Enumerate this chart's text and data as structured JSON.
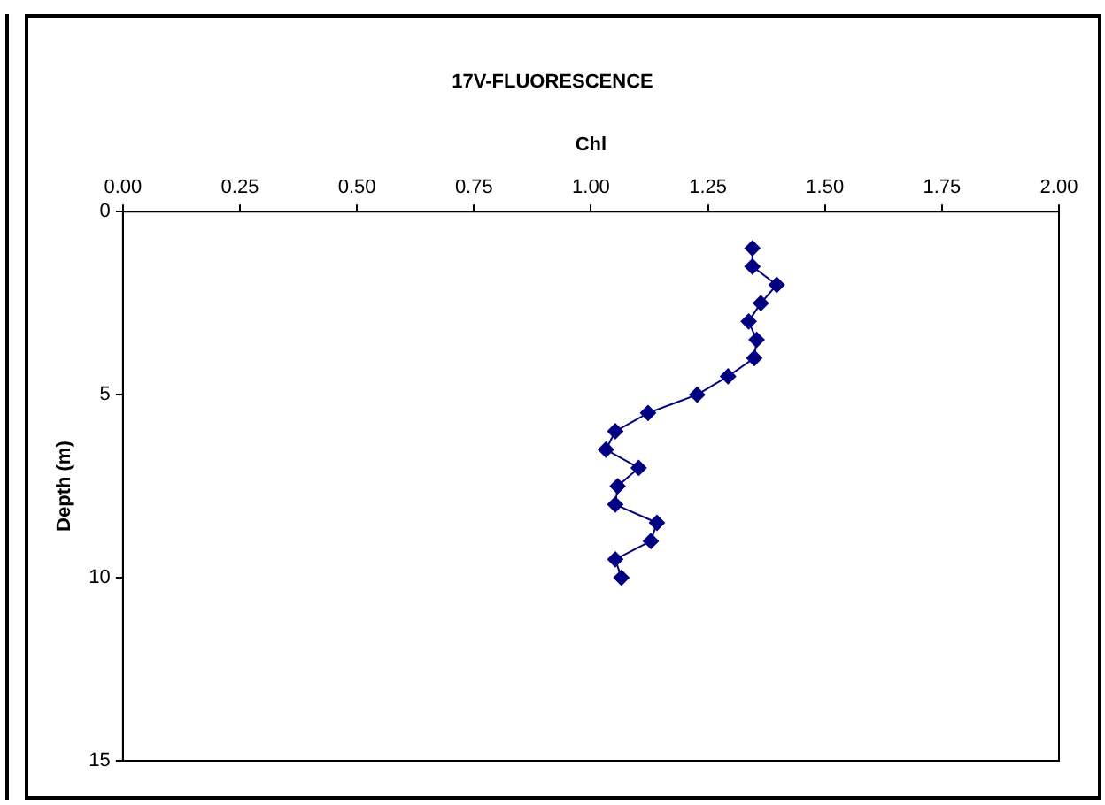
{
  "chart_data": {
    "type": "line",
    "title": "17V-FLUORESCENCE",
    "xlabel": "Chl",
    "ylabel": "Depth (m)",
    "xlim": [
      0,
      2
    ],
    "xticks": [
      {
        "value": 0,
        "label": "0.00"
      },
      {
        "value": 0.25,
        "label": "0.25"
      },
      {
        "value": 0.5,
        "label": "0.50"
      },
      {
        "value": 0.75,
        "label": "0.75"
      },
      {
        "value": 1,
        "label": "1.00"
      },
      {
        "value": 1.25,
        "label": "1.25"
      },
      {
        "value": 1.5,
        "label": "1.50"
      },
      {
        "value": 1.75,
        "label": "1.75"
      },
      {
        "value": 2,
        "label": "2.00"
      }
    ],
    "ylim": [
      15,
      0
    ],
    "yticks": [
      0,
      5,
      10,
      15
    ],
    "grid": false,
    "legend": false,
    "marker": "diamond",
    "line_style": "solid",
    "series": [
      {
        "color": "#000080",
        "x": [
          1.345,
          1.345,
          1.397,
          1.363,
          1.337,
          1.354,
          1.349,
          1.293,
          1.227,
          1.122,
          1.052,
          1.032,
          1.102,
          1.057,
          1.052,
          1.141,
          1.128,
          1.052,
          1.065
        ],
        "values": [
          1,
          1.5,
          2,
          2.5,
          3,
          3.5,
          4,
          4.5,
          5,
          5.5,
          6,
          6.5,
          7,
          7.5,
          8,
          8.5,
          9,
          9.5,
          10
        ]
      }
    ]
  }
}
